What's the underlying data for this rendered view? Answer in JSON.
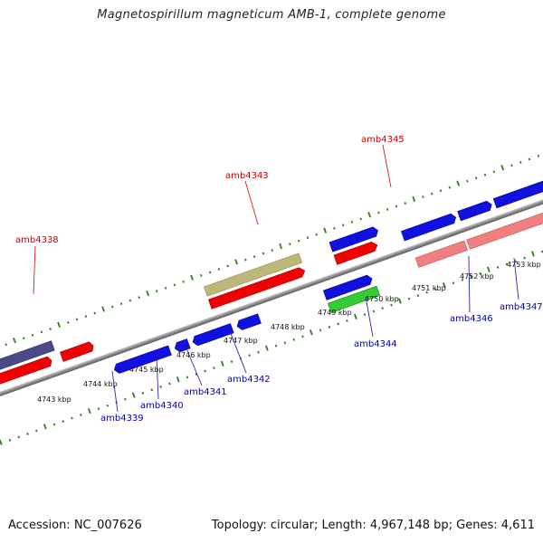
{
  "title": "Magnetospirillum magneticum AMB-1, complete genome",
  "footer": {
    "accession": "Accession: NC_007626",
    "summary": "Topology: circular; Length: 4,967,148 bp; Genes: 4,611"
  },
  "colors": {
    "backbone": "#8c8c8c",
    "tick": "#2e7d1a",
    "label_top": "#cc0000",
    "label_bottom": "#0000aa",
    "gene_blue": "#1010e0",
    "gene_red": "#f00000",
    "gene_green": "#33cc33",
    "gene_pink": "#f08080",
    "gene_olive": "#bdb77a",
    "gene_purple": "#4a4a8a"
  },
  "scale_labels": [
    "4743 kbp",
    "4744 kbp",
    "4745 kbp",
    "4746 kbp",
    "4747 kbp",
    "4748 kbp",
    "4749 kbp",
    "4750 kbp",
    "4751 kbp",
    "4752 kbp",
    "4753 kbp"
  ],
  "gene_labels": {
    "amb4338": "amb4338",
    "amb4339": "amb4339",
    "amb4340": "amb4340",
    "amb4341": "amb4341",
    "amb4342": "amb4342",
    "amb4343": "amb4343",
    "amb4344": "amb4344",
    "amb4345": "amb4345",
    "amb4346": "amb4346",
    "amb4347": "amb4347"
  }
}
